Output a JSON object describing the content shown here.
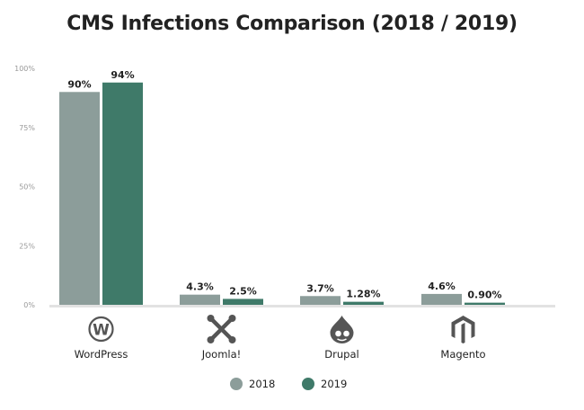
{
  "chart_data": {
    "type": "bar",
    "title": "CMS Infections Comparison (2018 / 2019)",
    "categories": [
      "WordPress",
      "Joomla!",
      "Drupal",
      "Magento"
    ],
    "category_icons": [
      "wordpress-logo-icon",
      "joomla-logo-icon",
      "drupal-logo-icon",
      "magento-logo-icon"
    ],
    "series": [
      {
        "name": "2018",
        "color": "#8c9d9a",
        "values": [
          90,
          4.3,
          3.7,
          4.6
        ],
        "labels": [
          "90%",
          "4.3%",
          "3.7%",
          "4.6%"
        ]
      },
      {
        "name": "2019",
        "color": "#3f7a69",
        "values": [
          94,
          2.5,
          1.28,
          0.9
        ],
        "labels": [
          "94%",
          "2.5%",
          "1.28%",
          "0.90%"
        ]
      }
    ],
    "ylim": [
      0,
      100
    ],
    "yticks": [
      {
        "value": 0,
        "label": "0%"
      },
      {
        "value": 25,
        "label": "25%"
      },
      {
        "value": 50,
        "label": "50%"
      },
      {
        "value": 75,
        "label": "75%"
      },
      {
        "value": 100,
        "label": "100%"
      }
    ],
    "grid": false,
    "legend": "bottom-center"
  }
}
